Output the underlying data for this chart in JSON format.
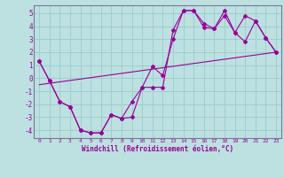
{
  "xlabel": "Windchill (Refroidissement éolien,°C)",
  "xlim": [
    -0.5,
    23.5
  ],
  "ylim": [
    -4.6,
    5.6
  ],
  "yticks": [
    -4,
    -3,
    -2,
    -1,
    0,
    1,
    2,
    3,
    4,
    5
  ],
  "xticks": [
    0,
    1,
    2,
    3,
    4,
    5,
    6,
    7,
    8,
    9,
    10,
    11,
    12,
    13,
    14,
    15,
    16,
    17,
    18,
    19,
    20,
    21,
    22,
    23
  ],
  "bg_color": "#bde0e0",
  "line_color": "#990099",
  "grid_color": "#99cccc",
  "line1_x": [
    0,
    1,
    2,
    3,
    4,
    5,
    6,
    7,
    8,
    9,
    10,
    11,
    12,
    13,
    14,
    15,
    16,
    17,
    18,
    19,
    20,
    21,
    22,
    23
  ],
  "line1_y": [
    1.3,
    -0.2,
    -1.8,
    -2.2,
    -4.0,
    -4.2,
    -4.2,
    -2.8,
    -3.1,
    -3.0,
    -0.7,
    -0.7,
    -0.7,
    3.7,
    5.2,
    5.2,
    3.9,
    3.8,
    5.2,
    3.5,
    4.8,
    4.4,
    3.1,
    2.0
  ],
  "line2_x": [
    0,
    1,
    2,
    3,
    4,
    5,
    6,
    7,
    8,
    9,
    10,
    11,
    12,
    13,
    14,
    15,
    16,
    17,
    18,
    19,
    20,
    21,
    22,
    23
  ],
  "line2_y": [
    1.3,
    -0.2,
    -1.8,
    -2.2,
    -4.0,
    -4.2,
    -4.2,
    -2.8,
    -3.1,
    -1.8,
    -0.7,
    0.9,
    0.2,
    3.0,
    5.2,
    5.2,
    4.2,
    3.8,
    4.8,
    3.5,
    2.8,
    4.4,
    3.1,
    2.0
  ],
  "line3_x": [
    0,
    23
  ],
  "line3_y": [
    -0.5,
    2.0
  ]
}
